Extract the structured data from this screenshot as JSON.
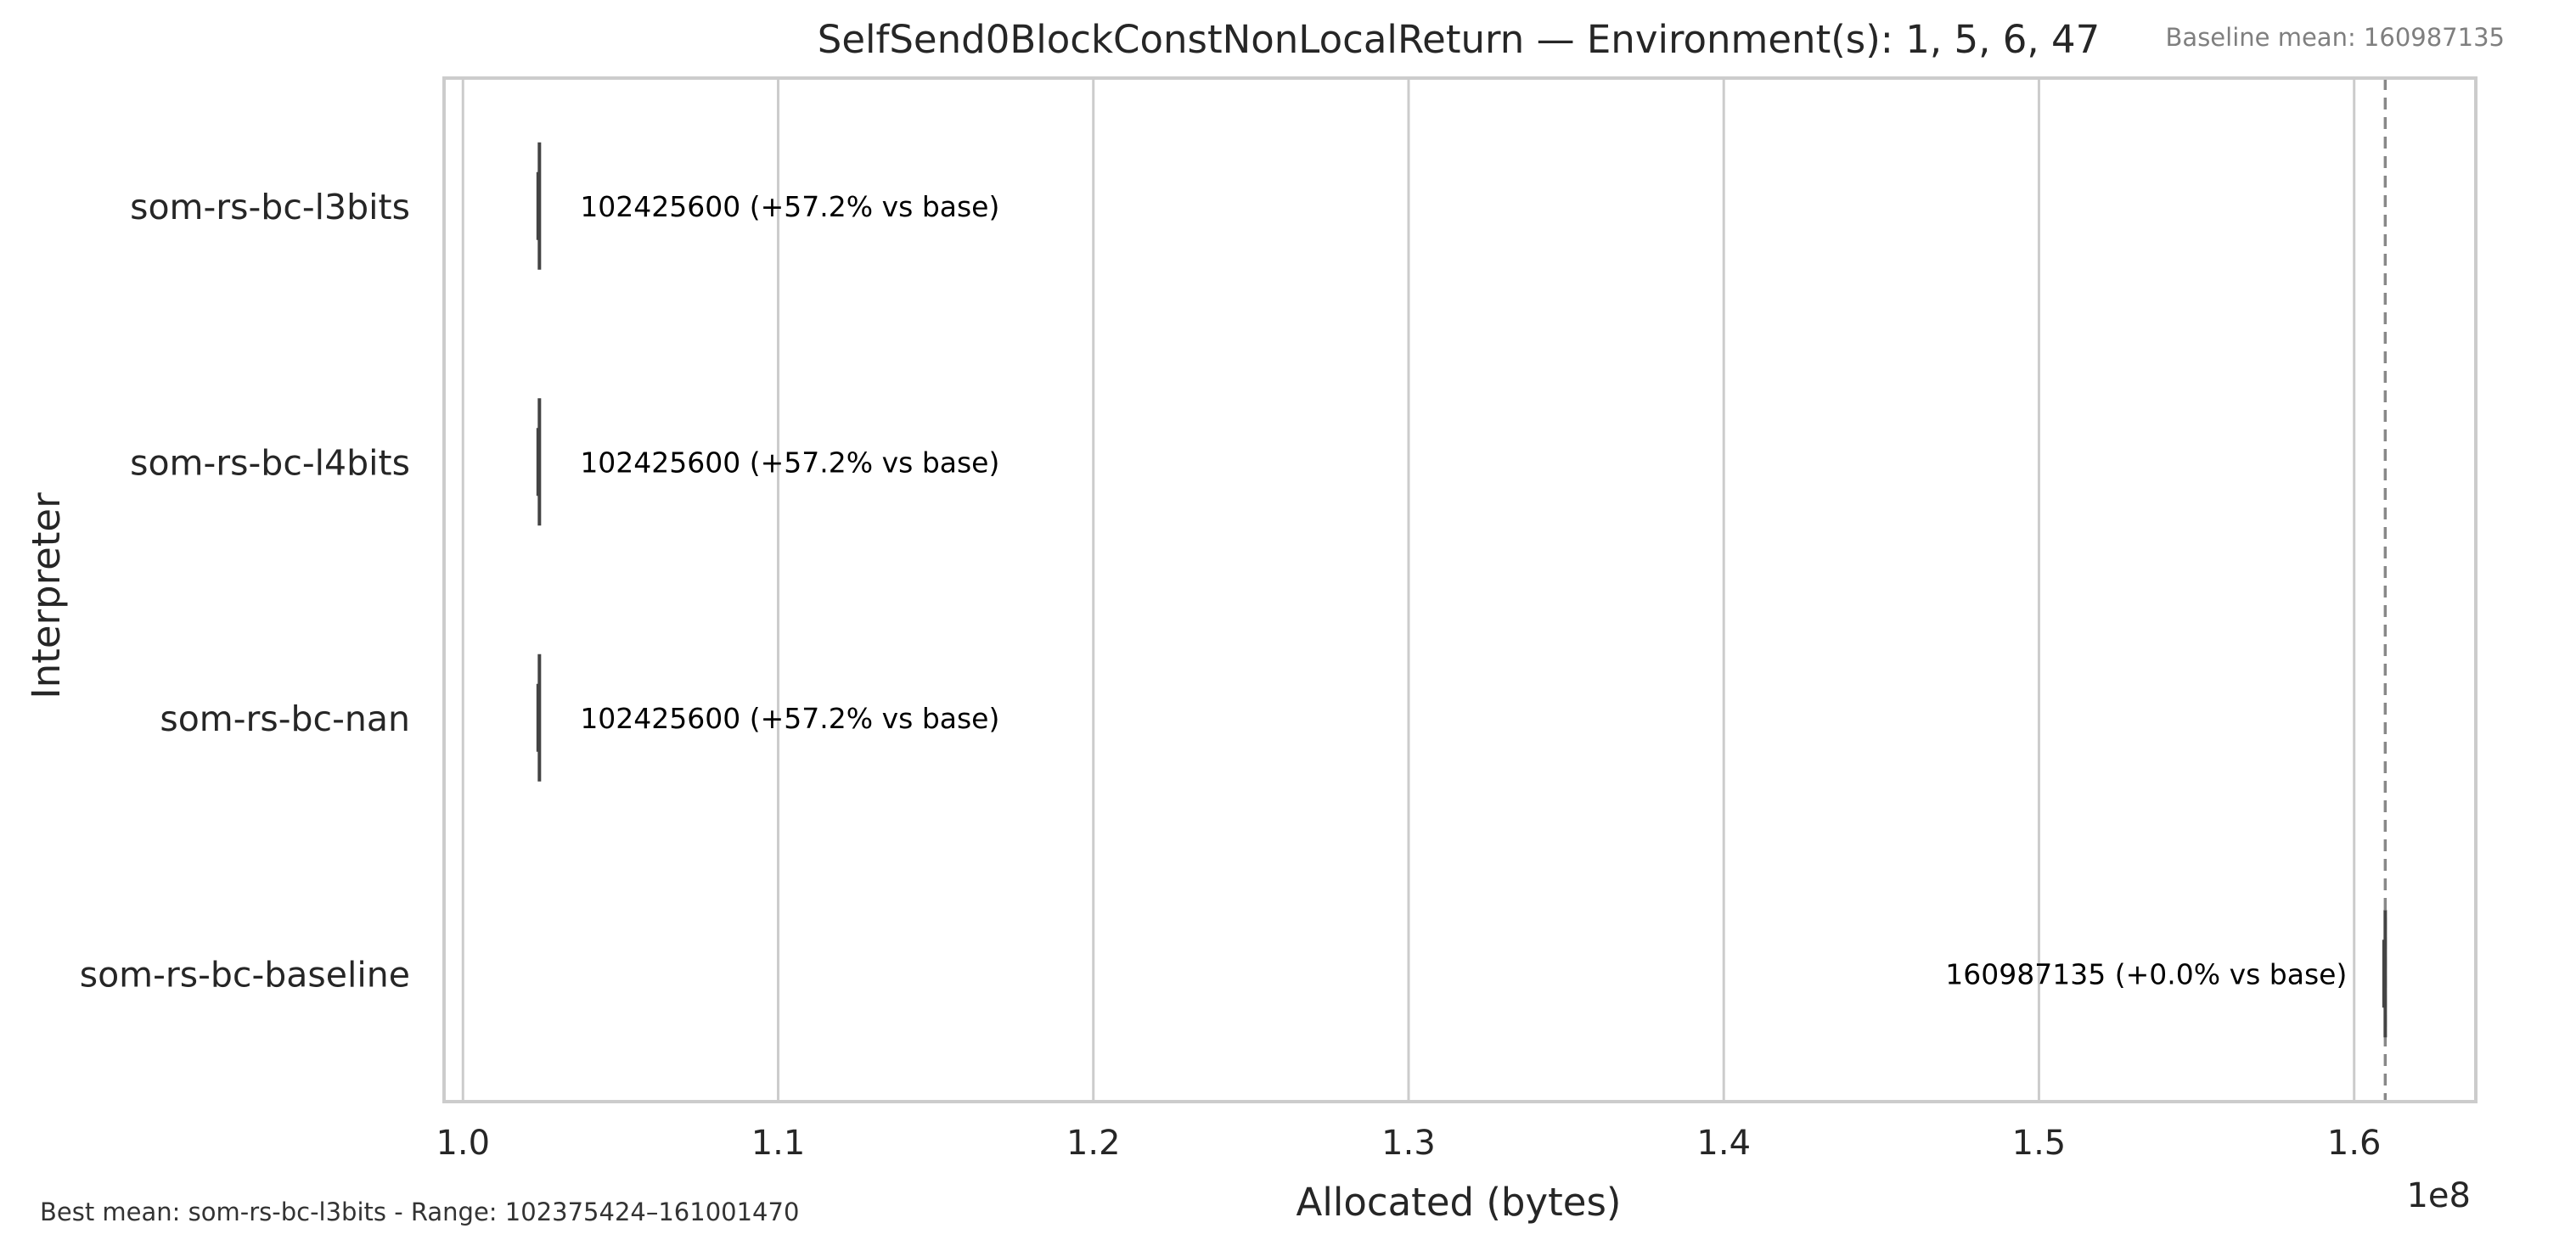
{
  "chart_data": {
    "type": "box",
    "orientation": "horizontal",
    "title": "SelfSend0BlockConstNonLocalReturn — Environment(s): 1, 5, 6, 47",
    "xlabel": "Allocated (bytes)",
    "ylabel": "Interpreter",
    "x_scale_label": "1e8",
    "xlim": [
      0.994,
      1.6386
    ],
    "x_ticks": [
      1.0,
      1.1,
      1.2,
      1.3,
      1.4,
      1.5,
      1.6
    ],
    "x_tick_labels": [
      "1.0",
      "1.1",
      "1.2",
      "1.3",
      "1.4",
      "1.5",
      "1.6"
    ],
    "grid": "vertical",
    "categories": [
      "som-rs-bc-l3bits",
      "som-rs-bc-l4bits",
      "som-rs-bc-nan",
      "som-rs-bc-baseline"
    ],
    "series": [
      {
        "category": "som-rs-bc-l3bits",
        "value": 1.024256,
        "low": 1.02375424,
        "high": 1.0244,
        "label": "102425600  (+57.2% vs base)",
        "label_side": "right"
      },
      {
        "category": "som-rs-bc-l4bits",
        "value": 1.024256,
        "low": 1.02375424,
        "high": 1.0244,
        "label": "102425600  (+57.2% vs base)",
        "label_side": "right"
      },
      {
        "category": "som-rs-bc-nan",
        "value": 1.024256,
        "low": 1.02375424,
        "high": 1.0244,
        "label": "102425600  (+57.2% vs base)",
        "label_side": "right"
      },
      {
        "category": "som-rs-bc-baseline",
        "value": 1.60987135,
        "low": 1.6098,
        "high": 1.6100147,
        "label": "160987135  (+0.0% vs base)",
        "label_side": "left"
      }
    ],
    "baseline": {
      "value": 1.60987135,
      "style": "dashed",
      "label": "Baseline mean: 160987135"
    },
    "footer": "Best mean: som-rs-bc-l3bits - Range: 102375424–161001470",
    "colors": {
      "axis": "#cccccc",
      "grid": "#cccccc",
      "mark": "#444444",
      "baseline_line": "#888888",
      "text": "#262626",
      "annotation": "#000000",
      "muted": "#7f7f7f"
    }
  }
}
